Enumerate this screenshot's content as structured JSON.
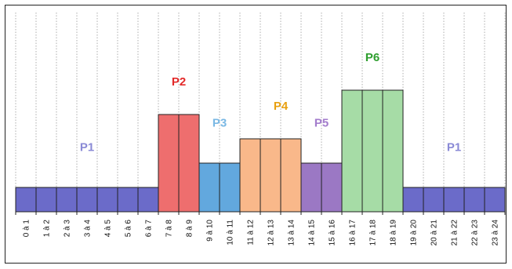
{
  "chart_data": {
    "type": "bar",
    "title": "",
    "xlabel": "",
    "ylabel": "",
    "ylim": [
      0,
      6
    ],
    "grid": "vertical-dotted",
    "categories": [
      "0 à 1",
      "1 à 2",
      "2 à 3",
      "3 à 4",
      "4 à 5",
      "5 à 6",
      "6 à 7",
      "7 à 8",
      "8 à 9",
      "9 à 10",
      "10 à 11",
      "11 à 12",
      "12 à 13",
      "13 à 14",
      "14 à 15",
      "15 à 16",
      "16 à 17",
      "17 à 18",
      "18 à 19",
      "19 à 20",
      "20 à 21",
      "21 à 22",
      "22 à 23",
      "23 à 24"
    ],
    "values": [
      1,
      1,
      1,
      1,
      1,
      1,
      1,
      4,
      4,
      2,
      2,
      3,
      3,
      3,
      2,
      2,
      5,
      5,
      5,
      1,
      1,
      1,
      1,
      1
    ],
    "periods": [
      "P1",
      "P1",
      "P1",
      "P1",
      "P1",
      "P1",
      "P1",
      "P2",
      "P2",
      "P3",
      "P3",
      "P4",
      "P4",
      "P4",
      "P5",
      "P5",
      "P6",
      "P6",
      "P6",
      "P1",
      "P1",
      "P1",
      "P1",
      "P1"
    ],
    "period_colors": {
      "P1": {
        "fill": "#6b6bc9",
        "label": "#8a8ad6"
      },
      "P2": {
        "fill": "#ee6e6e",
        "label": "#e32a2a"
      },
      "P3": {
        "fill": "#62a8de",
        "label": "#7ab8e4"
      },
      "P4": {
        "fill": "#f9b88a",
        "label": "#e8a010"
      },
      "P5": {
        "fill": "#9b78c4",
        "label": "#a37ccc"
      },
      "P6": {
        "fill": "#a6dca6",
        "label": "#2e9e2e"
      }
    },
    "annotations": [
      {
        "text": "P1",
        "x_index": 3.5,
        "y": 2.5,
        "color": "#8a8ad6"
      },
      {
        "text": "P2",
        "x_index": 8.0,
        "y": 5.2,
        "color": "#e32a2a"
      },
      {
        "text": "P3",
        "x_index": 10.0,
        "y": 3.5,
        "color": "#7ab8e4"
      },
      {
        "text": "P4",
        "x_index": 13.0,
        "y": 4.2,
        "color": "#e8a010"
      },
      {
        "text": "P5",
        "x_index": 15.0,
        "y": 3.5,
        "color": "#a37ccc"
      },
      {
        "text": "P6",
        "x_index": 17.5,
        "y": 6.2,
        "color": "#2e9e2e"
      },
      {
        "text": "P1",
        "x_index": 21.5,
        "y": 2.5,
        "color": "#8a8ad6"
      }
    ],
    "bar_edge_color": "#222222"
  }
}
